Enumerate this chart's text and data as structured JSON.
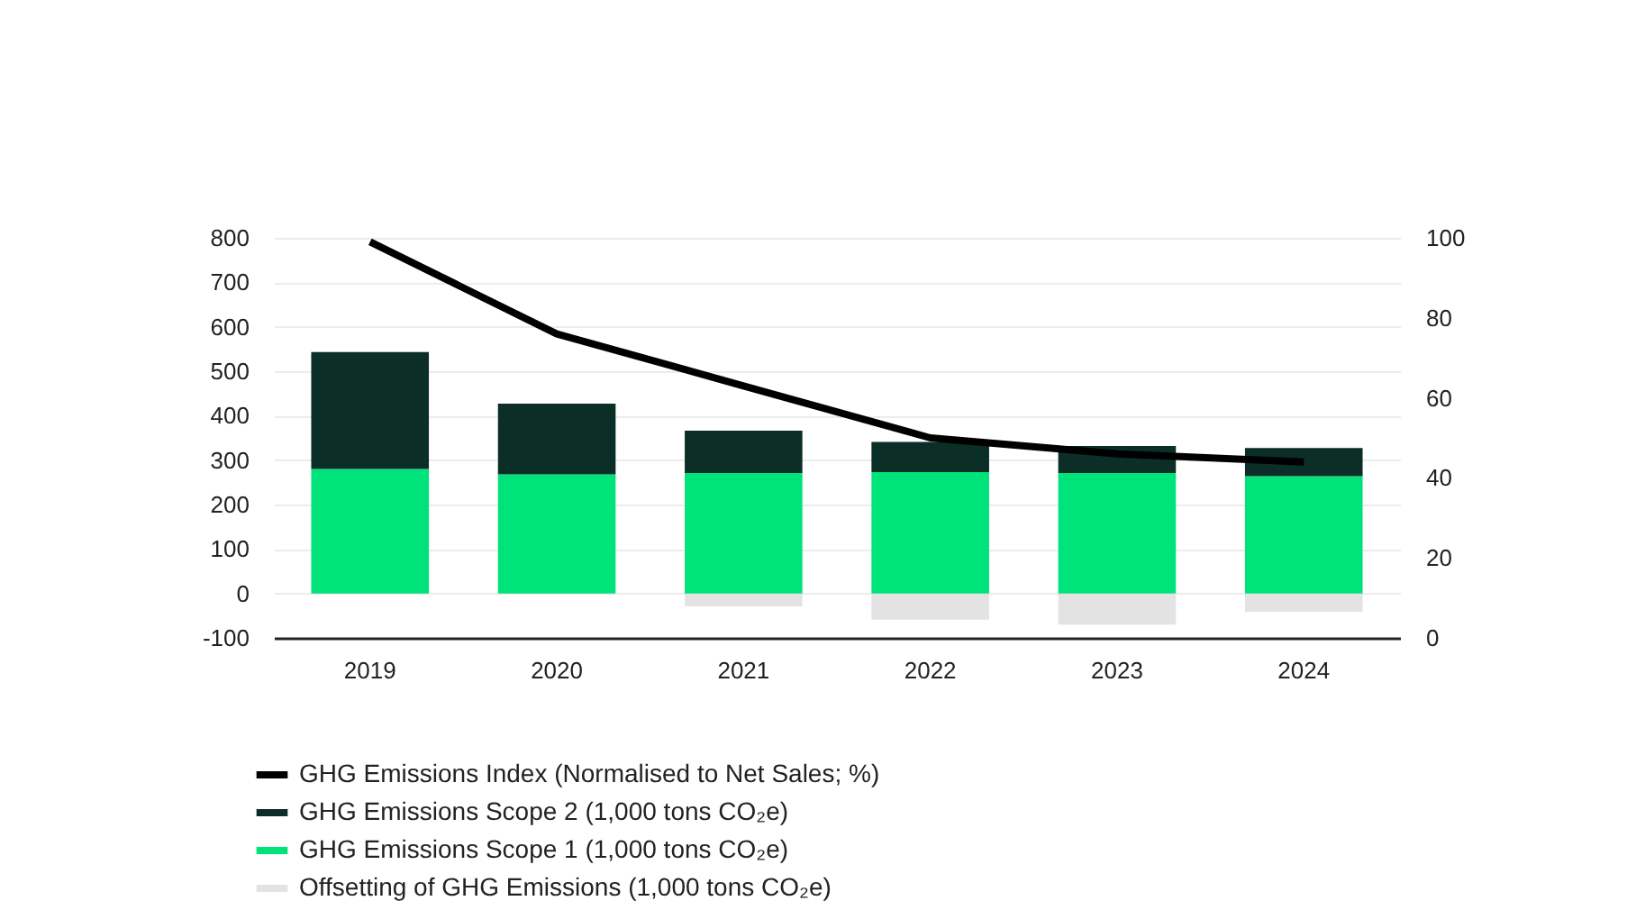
{
  "chart_data": {
    "type": "bar",
    "stacked": true,
    "categories": [
      "2019",
      "2020",
      "2021",
      "2022",
      "2023",
      "2024"
    ],
    "series": [
      {
        "name": "Offsetting of GHG Emissions (1,000 tons CO₂e)",
        "color": "#e3e3e3",
        "values": [
          0,
          0,
          -29,
          -59,
          -70,
          -41
        ]
      },
      {
        "name": "GHG Emissions Scope 1 (1,000 tons CO₂e)",
        "color": "#00e27a",
        "values": [
          280,
          268,
          271,
          273,
          271,
          264
        ]
      },
      {
        "name": "GHG Emissions Scope 2 (1,000 tons CO₂e)",
        "color": "#0b2e26",
        "values": [
          263,
          159,
          95,
          68,
          61,
          63
        ]
      },
      {
        "name": "GHG Emissions Index (Normalised to Net Sales; %)",
        "type": "line",
        "axis": "y2",
        "color": "#000000",
        "values": [
          99,
          76,
          63,
          50,
          46,
          44
        ]
      }
    ],
    "ylim": [
      -100,
      800
    ],
    "yticks": [
      -100,
      0,
      100,
      200,
      300,
      400,
      500,
      600,
      700,
      800
    ],
    "y2lim": [
      0,
      100
    ],
    "y2ticks": [
      0,
      20,
      40,
      60,
      80,
      100
    ],
    "grid": "y",
    "legend": "bottom",
    "line_style": "solid"
  }
}
